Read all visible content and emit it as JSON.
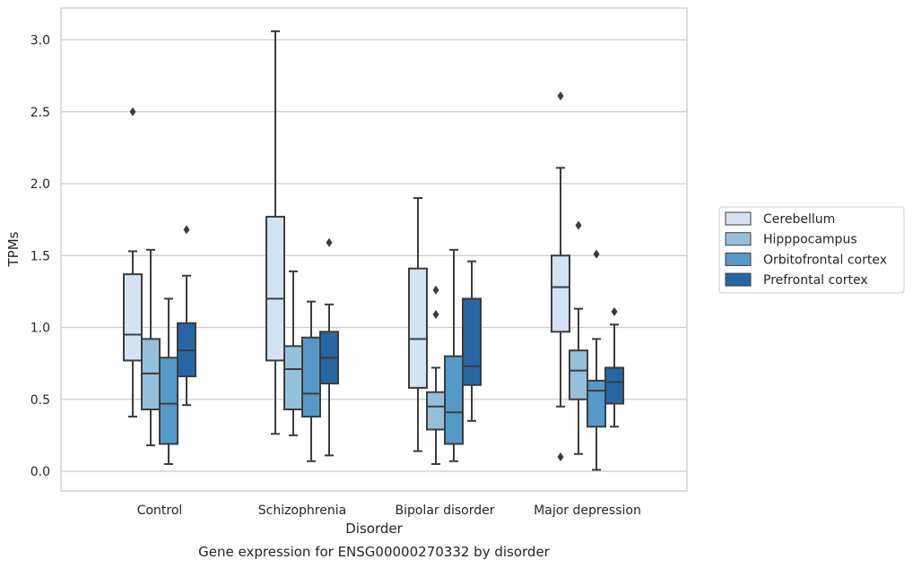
{
  "chart_data": {
    "type": "box",
    "xlabel": "Disorder",
    "ylabel": "TPMs",
    "caption": "Gene expression for ENSG00000270332 by disorder",
    "ylim": [
      -0.13,
      3.22
    ],
    "yticks": [
      "0.0",
      "0.5",
      "1.0",
      "1.5",
      "2.0",
      "2.5",
      "3.0"
    ],
    "grid": "horizontal",
    "legend_position": "right",
    "categories": [
      "Control",
      "Schizophrenia",
      "Bipolar disorder",
      "Major depression"
    ],
    "series": [
      {
        "name": "Cerebellum",
        "color": "#d3e3f1",
        "boxes": [
          {
            "min": 0.38,
            "q1": 0.77,
            "median": 0.95,
            "q3": 1.37,
            "max": 1.53,
            "outliers": [
              2.5
            ]
          },
          {
            "min": 0.26,
            "q1": 0.77,
            "median": 1.2,
            "q3": 1.77,
            "max": 3.06,
            "outliers": []
          },
          {
            "min": 0.14,
            "q1": 0.58,
            "median": 0.92,
            "q3": 1.41,
            "max": 1.9,
            "outliers": []
          },
          {
            "min": 0.45,
            "q1": 0.97,
            "median": 1.28,
            "q3": 1.5,
            "max": 2.11,
            "outliers": [
              2.61,
              0.1
            ]
          }
        ]
      },
      {
        "name": "Hipppocampus",
        "color": "#95c0dc",
        "boxes": [
          {
            "min": 0.18,
            "q1": 0.43,
            "median": 0.68,
            "q3": 0.92,
            "max": 1.54,
            "outliers": []
          },
          {
            "min": 0.25,
            "q1": 0.43,
            "median": 0.71,
            "q3": 0.87,
            "max": 1.39,
            "outliers": []
          },
          {
            "min": 0.05,
            "q1": 0.29,
            "median": 0.45,
            "q3": 0.55,
            "max": 0.72,
            "outliers": [
              1.26,
              1.09
            ]
          },
          {
            "min": 0.12,
            "q1": 0.5,
            "median": 0.7,
            "q3": 0.84,
            "max": 1.13,
            "outliers": [
              1.71
            ]
          }
        ]
      },
      {
        "name": "Orbitofrontal cortex",
        "color": "#5599c8",
        "boxes": [
          {
            "min": 0.05,
            "q1": 0.19,
            "median": 0.47,
            "q3": 0.79,
            "max": 1.2,
            "outliers": []
          },
          {
            "min": 0.07,
            "q1": 0.38,
            "median": 0.54,
            "q3": 0.93,
            "max": 1.18,
            "outliers": []
          },
          {
            "min": 0.07,
            "q1": 0.19,
            "median": 0.41,
            "q3": 0.8,
            "max": 1.54,
            "outliers": []
          },
          {
            "min": 0.01,
            "q1": 0.31,
            "median": 0.56,
            "q3": 0.63,
            "max": 0.92,
            "outliers": [
              1.51
            ]
          }
        ]
      },
      {
        "name": "Prefrontal cortex",
        "color": "#2666a5",
        "boxes": [
          {
            "min": 0.46,
            "q1": 0.66,
            "median": 0.84,
            "q3": 1.03,
            "max": 1.36,
            "outliers": [
              1.68
            ]
          },
          {
            "min": 0.11,
            "q1": 0.61,
            "median": 0.79,
            "q3": 0.97,
            "max": 1.16,
            "outliers": [
              1.59
            ]
          },
          {
            "min": 0.35,
            "q1": 0.6,
            "median": 0.73,
            "q3": 1.2,
            "max": 1.46,
            "outliers": []
          },
          {
            "min": 0.31,
            "q1": 0.47,
            "median": 0.62,
            "q3": 0.72,
            "max": 1.02,
            "outliers": [
              1.11
            ]
          }
        ]
      }
    ]
  }
}
